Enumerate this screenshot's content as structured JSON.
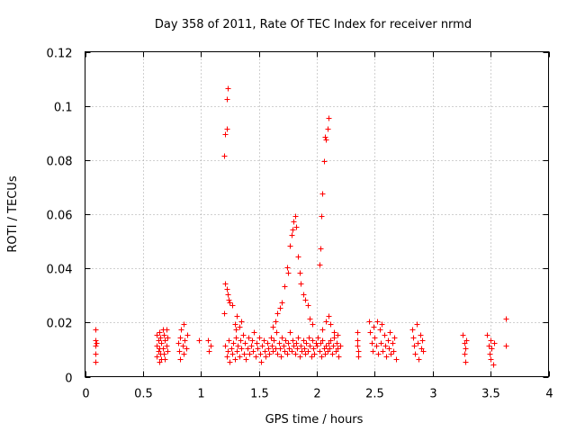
{
  "chart_data": {
    "type": "scatter",
    "title": "Day 358 of 2011, Rate Of TEC Index for receiver nrmd",
    "xlabel": "GPS time / hours",
    "ylabel": "ROTI / TECUs",
    "xlim": [
      0,
      4
    ],
    "ylim": [
      0,
      0.12
    ],
    "x_ticks": [
      0,
      0.5,
      1,
      1.5,
      2,
      2.5,
      3,
      3.5,
      4
    ],
    "x_tick_labels": [
      "0",
      "0.5",
      "1",
      "1.5",
      "2",
      "2.5",
      "3",
      "3.5",
      "4"
    ],
    "y_ticks": [
      0,
      0.02,
      0.04,
      0.06,
      0.08,
      0.1,
      0.12
    ],
    "y_tick_labels": [
      "0",
      "0.02",
      "0.04",
      "0.06",
      "0.08",
      "0.1",
      "0.12"
    ],
    "grid": true,
    "marker": "+",
    "marker_color": "#ff0000",
    "series": [
      {
        "name": "ROTI",
        "points": [
          [
            0.09,
            0.0175
          ],
          [
            0.09,
            0.0135
          ],
          [
            0.09,
            0.0115
          ],
          [
            0.09,
            0.0085
          ],
          [
            0.09,
            0.0055
          ],
          [
            0.1,
            0.0125
          ],
          [
            0.62,
            0.0155
          ],
          [
            0.62,
            0.0115
          ],
          [
            0.62,
            0.0075
          ],
          [
            0.63,
            0.0135
          ],
          [
            0.63,
            0.0095
          ],
          [
            0.64,
            0.0165
          ],
          [
            0.64,
            0.0105
          ],
          [
            0.64,
            0.0055
          ],
          [
            0.65,
            0.0145
          ],
          [
            0.65,
            0.0085
          ],
          [
            0.66,
            0.0125
          ],
          [
            0.66,
            0.0065
          ],
          [
            0.67,
            0.0175
          ],
          [
            0.67,
            0.0105
          ],
          [
            0.68,
            0.0155
          ],
          [
            0.68,
            0.0085
          ],
          [
            0.69,
            0.0135
          ],
          [
            0.69,
            0.0065
          ],
          [
            0.7,
            0.0115
          ],
          [
            0.7,
            0.0175
          ],
          [
            0.71,
            0.0095
          ],
          [
            0.71,
            0.0145
          ],
          [
            0.8,
            0.0125
          ],
          [
            0.81,
            0.0095
          ],
          [
            0.82,
            0.0145
          ],
          [
            0.82,
            0.0065
          ],
          [
            0.83,
            0.0175
          ],
          [
            0.84,
            0.0115
          ],
          [
            0.85,
            0.0085
          ],
          [
            0.85,
            0.0195
          ],
          [
            0.86,
            0.0135
          ],
          [
            0.87,
            0.0105
          ],
          [
            0.88,
            0.0155
          ],
          [
            0.98,
            0.0135
          ],
          [
            1.06,
            0.0135
          ],
          [
            1.07,
            0.0095
          ],
          [
            1.08,
            0.0115
          ],
          [
            1.2,
            0.0815
          ],
          [
            1.21,
            0.0895
          ],
          [
            1.22,
            0.0915
          ],
          [
            1.22,
            0.1025
          ],
          [
            1.23,
            0.1065
          ],
          [
            1.2,
            0.0235
          ],
          [
            1.21,
            0.0345
          ],
          [
            1.22,
            0.0325
          ],
          [
            1.23,
            0.0305
          ],
          [
            1.24,
            0.0285
          ],
          [
            1.25,
            0.0275
          ],
          [
            1.27,
            0.0265
          ],
          [
            1.29,
            0.0195
          ],
          [
            1.3,
            0.0175
          ],
          [
            1.31,
            0.0225
          ],
          [
            1.33,
            0.0185
          ],
          [
            1.35,
            0.0205
          ],
          [
            1.21,
            0.0115
          ],
          [
            1.22,
            0.0075
          ],
          [
            1.23,
            0.0095
          ],
          [
            1.24,
            0.0135
          ],
          [
            1.25,
            0.0055
          ],
          [
            1.26,
            0.0105
          ],
          [
            1.27,
            0.0085
          ],
          [
            1.28,
            0.0125
          ],
          [
            1.29,
            0.0065
          ],
          [
            1.3,
            0.0145
          ],
          [
            1.31,
            0.0095
          ],
          [
            1.32,
            0.0115
          ],
          [
            1.33,
            0.0075
          ],
          [
            1.34,
            0.0135
          ],
          [
            1.35,
            0.0105
          ],
          [
            1.36,
            0.0155
          ],
          [
            1.37,
            0.0085
          ],
          [
            1.38,
            0.0125
          ],
          [
            1.39,
            0.0065
          ],
          [
            1.4,
            0.0105
          ],
          [
            1.41,
            0.0145
          ],
          [
            1.42,
            0.0085
          ],
          [
            1.43,
            0.0115
          ],
          [
            1.44,
            0.0135
          ],
          [
            1.45,
            0.0095
          ],
          [
            1.46,
            0.0165
          ],
          [
            1.47,
            0.0075
          ],
          [
            1.48,
            0.0125
          ],
          [
            1.49,
            0.0105
          ],
          [
            1.5,
            0.0145
          ],
          [
            1.51,
            0.0085
          ],
          [
            1.52,
            0.0055
          ],
          [
            1.53,
            0.0115
          ],
          [
            1.54,
            0.0135
          ],
          [
            1.55,
            0.0095
          ],
          [
            1.56,
            0.0075
          ],
          [
            1.57,
            0.0125
          ],
          [
            1.58,
            0.0105
          ],
          [
            1.59,
            0.0085
          ],
          [
            1.6,
            0.0145
          ],
          [
            1.61,
            0.0115
          ],
          [
            1.62,
            0.0095
          ],
          [
            1.63,
            0.0135
          ],
          [
            1.64,
            0.0105
          ],
          [
            1.65,
            0.0165
          ],
          [
            1.66,
            0.0085
          ],
          [
            1.67,
            0.0125
          ],
          [
            1.68,
            0.0105
          ],
          [
            1.69,
            0.0075
          ],
          [
            1.7,
            0.0145
          ],
          [
            1.71,
            0.0115
          ],
          [
            1.72,
            0.0095
          ],
          [
            1.73,
            0.0135
          ],
          [
            1.74,
            0.0085
          ],
          [
            1.75,
            0.0125
          ],
          [
            1.76,
            0.0105
          ],
          [
            1.77,
            0.0165
          ],
          [
            1.78,
            0.0095
          ],
          [
            1.79,
            0.0135
          ],
          [
            1.8,
            0.0115
          ],
          [
            1.81,
            0.0085
          ],
          [
            1.82,
            0.0125
          ],
          [
            1.83,
            0.0105
          ],
          [
            1.84,
            0.0145
          ],
          [
            1.85,
            0.0075
          ],
          [
            1.86,
            0.0115
          ],
          [
            1.87,
            0.0095
          ],
          [
            1.88,
            0.0135
          ],
          [
            1.89,
            0.0105
          ],
          [
            1.9,
            0.0085
          ],
          [
            1.91,
            0.0125
          ],
          [
            1.92,
            0.0095
          ],
          [
            1.93,
            0.0145
          ],
          [
            1.94,
            0.0115
          ],
          [
            1.95,
            0.0075
          ],
          [
            1.96,
            0.0135
          ],
          [
            1.97,
            0.0105
          ],
          [
            1.98,
            0.0085
          ],
          [
            1.99,
            0.0125
          ],
          [
            2.0,
            0.0115
          ],
          [
            2.01,
            0.0145
          ],
          [
            2.02,
            0.0095
          ],
          [
            2.03,
            0.0125
          ],
          [
            2.04,
            0.0075
          ],
          [
            2.05,
            0.0135
          ],
          [
            2.06,
            0.0105
          ],
          [
            2.07,
            0.0085
          ],
          [
            2.08,
            0.0115
          ],
          [
            2.09,
            0.0095
          ],
          [
            2.1,
            0.0125
          ],
          [
            2.11,
            0.0105
          ],
          [
            2.12,
            0.0135
          ],
          [
            2.13,
            0.0085
          ],
          [
            2.14,
            0.0115
          ],
          [
            2.15,
            0.0145
          ],
          [
            2.16,
            0.0095
          ],
          [
            2.17,
            0.0125
          ],
          [
            2.18,
            0.0105
          ],
          [
            2.19,
            0.0075
          ],
          [
            2.2,
            0.0115
          ],
          [
            1.62,
            0.0185
          ],
          [
            1.64,
            0.0205
          ],
          [
            1.66,
            0.0235
          ],
          [
            1.68,
            0.0255
          ],
          [
            1.7,
            0.0275
          ],
          [
            1.72,
            0.0335
          ],
          [
            1.74,
            0.0405
          ],
          [
            1.75,
            0.0385
          ],
          [
            1.77,
            0.0485
          ],
          [
            1.78,
            0.0525
          ],
          [
            1.79,
            0.0545
          ],
          [
            1.8,
            0.0575
          ],
          [
            1.81,
            0.0595
          ],
          [
            1.82,
            0.0555
          ],
          [
            1.84,
            0.0445
          ],
          [
            1.85,
            0.0385
          ],
          [
            1.86,
            0.0345
          ],
          [
            1.88,
            0.0305
          ],
          [
            1.9,
            0.0285
          ],
          [
            1.92,
            0.0265
          ],
          [
            1.94,
            0.0215
          ],
          [
            1.96,
            0.0195
          ],
          [
            2.02,
            0.0415
          ],
          [
            2.03,
            0.0475
          ],
          [
            2.04,
            0.0595
          ],
          [
            2.05,
            0.0675
          ],
          [
            2.06,
            0.0795
          ],
          [
            2.07,
            0.0885
          ],
          [
            2.08,
            0.0875
          ],
          [
            2.09,
            0.0915
          ],
          [
            2.1,
            0.0955
          ],
          [
            2.05,
            0.0175
          ],
          [
            2.08,
            0.0205
          ],
          [
            2.1,
            0.0225
          ],
          [
            2.12,
            0.0195
          ],
          [
            2.15,
            0.0165
          ],
          [
            2.18,
            0.0155
          ],
          [
            2.35,
            0.0165
          ],
          [
            2.35,
            0.0135
          ],
          [
            2.35,
            0.0115
          ],
          [
            2.36,
            0.0095
          ],
          [
            2.36,
            0.0075
          ],
          [
            2.45,
            0.0205
          ],
          [
            2.46,
            0.0165
          ],
          [
            2.47,
            0.0125
          ],
          [
            2.48,
            0.0095
          ],
          [
            2.49,
            0.0185
          ],
          [
            2.5,
            0.0145
          ],
          [
            2.51,
            0.0115
          ],
          [
            2.52,
            0.0205
          ],
          [
            2.53,
            0.0085
          ],
          [
            2.54,
            0.0175
          ],
          [
            2.55,
            0.0125
          ],
          [
            2.56,
            0.0195
          ],
          [
            2.57,
            0.0095
          ],
          [
            2.58,
            0.0155
          ],
          [
            2.59,
            0.0115
          ],
          [
            2.6,
            0.0075
          ],
          [
            2.61,
            0.0135
          ],
          [
            2.62,
            0.0105
          ],
          [
            2.63,
            0.0165
          ],
          [
            2.64,
            0.0085
          ],
          [
            2.65,
            0.0125
          ],
          [
            2.66,
            0.0095
          ],
          [
            2.67,
            0.0145
          ],
          [
            2.68,
            0.0065
          ],
          [
            2.82,
            0.0175
          ],
          [
            2.83,
            0.0145
          ],
          [
            2.84,
            0.0115
          ],
          [
            2.85,
            0.0085
          ],
          [
            2.86,
            0.0195
          ],
          [
            2.87,
            0.0125
          ],
          [
            2.88,
            0.0065
          ],
          [
            2.89,
            0.0155
          ],
          [
            2.9,
            0.0105
          ],
          [
            2.91,
            0.0135
          ],
          [
            2.92,
            0.0095
          ],
          [
            3.26,
            0.0155
          ],
          [
            3.27,
            0.0125
          ],
          [
            3.27,
            0.0085
          ],
          [
            3.28,
            0.0105
          ],
          [
            3.28,
            0.0055
          ],
          [
            3.29,
            0.0135
          ],
          [
            3.47,
            0.0155
          ],
          [
            3.48,
            0.0115
          ],
          [
            3.49,
            0.0085
          ],
          [
            3.5,
            0.0135
          ],
          [
            3.5,
            0.0065
          ],
          [
            3.51,
            0.0105
          ],
          [
            3.52,
            0.0045
          ],
          [
            3.53,
            0.0125
          ],
          [
            3.63,
            0.0215
          ],
          [
            3.63,
            0.0115
          ]
        ]
      }
    ]
  }
}
